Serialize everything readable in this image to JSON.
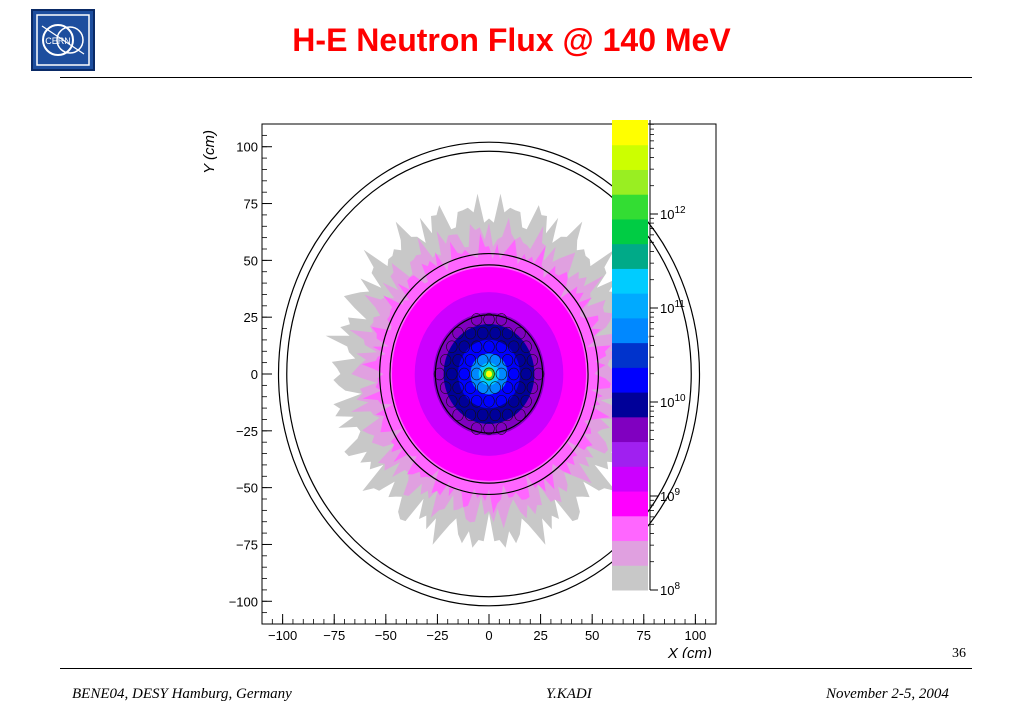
{
  "slide": {
    "logo_text": "CERN",
    "title": "H-E Neutron Flux @ 140 MeV",
    "page_number": "36",
    "footer_left": "BENE04, DESY Hamburg, Germany",
    "footer_center": "Y.KADI",
    "footer_right": "November 2-5, 2004"
  },
  "chart_data": {
    "type": "heatmap",
    "xlabel": "X (cm)",
    "ylabel": "Y (cm)",
    "xlim": [
      -110,
      110
    ],
    "ylim": [
      -110,
      110
    ],
    "x_ticks": [
      "−100",
      "−75",
      "−50",
      "−25",
      "0",
      "25",
      "50",
      "75",
      "100"
    ],
    "y_ticks": [
      "100",
      "75",
      "50",
      "25",
      "0",
      "−25",
      "−50",
      "−75",
      "−100"
    ],
    "colorbar": {
      "scale": "log",
      "range": [
        100000000.0,
        10000000000000.0
      ],
      "tick_labels": [
        {
          "label": "10",
          "exp": "8",
          "value": 100000000.0
        },
        {
          "label": "10",
          "exp": "9",
          "value": 1000000000.0
        },
        {
          "label": "10",
          "exp": "10",
          "value": 10000000000.0
        },
        {
          "label": "10",
          "exp": "11",
          "value": 100000000000.0
        },
        {
          "label": "10",
          "exp": "12",
          "value": 1000000000000.0
        }
      ],
      "colors": [
        "#c8c8c8",
        "#e0a0e0",
        "#ff66ff",
        "#ff00ff",
        "#cc00ff",
        "#a020f0",
        "#8000c0",
        "#000099",
        "#0000ff",
        "#0033cc",
        "#0088ff",
        "#00aaff",
        "#00ccff",
        "#00aa88",
        "#00cc44",
        "#33dd33",
        "#99ee22",
        "#ccff00",
        "#ffff00"
      ]
    },
    "flux_bands": [
      {
        "r": 72,
        "color": "#c8c8c8"
      },
      {
        "r": 62,
        "color": "#e0a0e0"
      },
      {
        "r": 55,
        "color": "#ff66ff"
      },
      {
        "r": 47,
        "color": "#ff00ff"
      },
      {
        "r": 36,
        "color": "#cc00ff"
      },
      {
        "r": 27,
        "color": "#8000c0"
      },
      {
        "r": 22,
        "color": "#000099"
      },
      {
        "r": 15,
        "color": "#0000ff"
      },
      {
        "r": 9,
        "color": "#0088ff"
      },
      {
        "r": 5,
        "color": "#00ccff"
      },
      {
        "r": 3,
        "color": "#33dd33"
      },
      {
        "r": 1.5,
        "color": "#ffff00"
      }
    ],
    "boundary_circles_r": [
      98,
      102,
      48,
      53,
      26
    ]
  }
}
